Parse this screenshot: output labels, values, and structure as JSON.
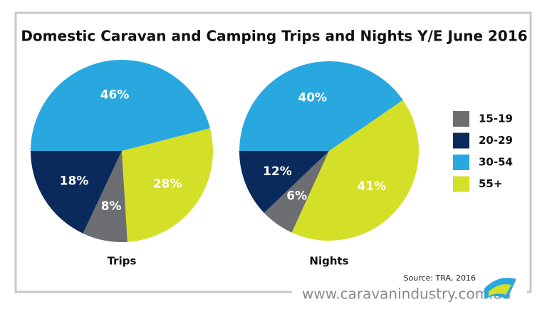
{
  "title": "Domestic Caravan and Camping Trips and Nights Y/E June 2016",
  "source": "Source: TRA, 2016",
  "website": "www.caravanindustry.com.au",
  "chart_data": [
    {
      "type": "pie",
      "label": "Trips",
      "categories": [
        "15-19",
        "20-29",
        "30-54",
        "55+"
      ],
      "colors": [
        "#6d6e71",
        "#0b2a5c",
        "#29a8e0",
        "#d4df27"
      ],
      "values": [
        8,
        18,
        46,
        28
      ],
      "value_labels": [
        "8%",
        "18%",
        "46%",
        "28%"
      ]
    },
    {
      "type": "pie",
      "label": "Nights",
      "categories": [
        "15-19",
        "20-29",
        "30-54",
        "55+"
      ],
      "colors": [
        "#6d6e71",
        "#0b2a5c",
        "#29a8e0",
        "#d4df27"
      ],
      "values": [
        6,
        12,
        40,
        41
      ],
      "value_labels": [
        "6%",
        "12%",
        "40%",
        "41%"
      ]
    }
  ]
}
